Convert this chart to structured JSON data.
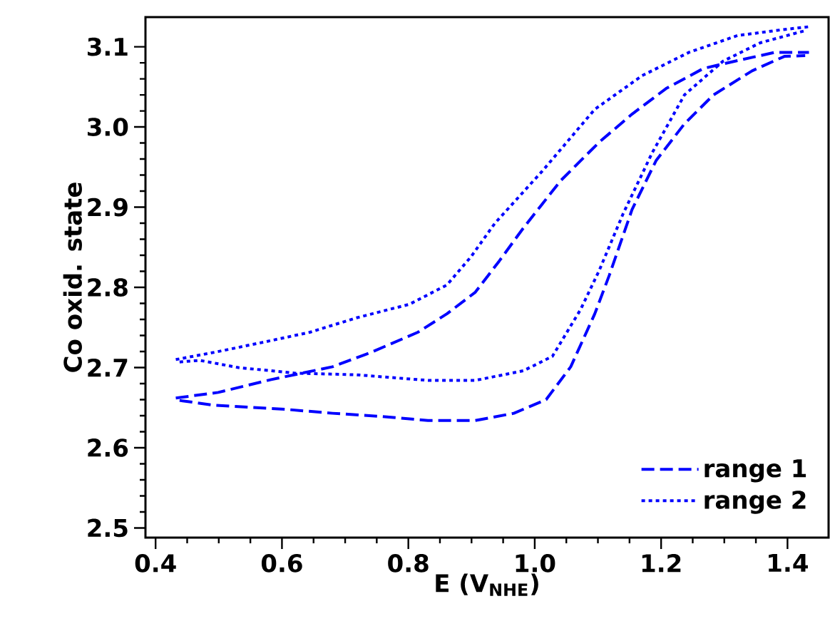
{
  "chart_data": {
    "type": "line",
    "xlabel": "E (V$_{NHE}$)",
    "ylabel": "Co oxid. state",
    "xlim": [
      0.384,
      1.465
    ],
    "ylim": [
      2.488,
      3.137
    ],
    "xticks": [
      0.4,
      0.6,
      0.8,
      {
        "value": 1.0,
        "label": "1.0"
      },
      1.2,
      1.4
    ],
    "yticks": [
      2.5,
      2.6,
      2.7,
      2.8,
      2.9,
      {
        "value": 3.0,
        "label": "3.0"
      },
      3.1
    ],
    "grid": false,
    "legend": "bottom right",
    "marker": "none",
    "series": [
      {
        "name": "range 1",
        "color": "#0000ff",
        "line_style": "dashed",
        "x": [
          0.432,
          0.499,
          0.583,
          0.68,
          0.741,
          0.815,
          0.861,
          0.906,
          0.944,
          0.982,
          1.041,
          1.102,
          1.154,
          1.208,
          1.267,
          1.328,
          1.38,
          1.434
        ],
        "values": [
          2.662,
          2.669,
          2.685,
          2.701,
          2.719,
          2.744,
          2.767,
          2.794,
          2.833,
          2.874,
          2.933,
          2.981,
          3.016,
          3.048,
          3.073,
          3.084,
          3.093,
          3.093
        ]
      },
      {
        "color": "#0000ff",
        "line_style": "dashed",
        "x": [
          0.438,
          0.493,
          0.605,
          0.68,
          0.757,
          0.831,
          0.906,
          0.967,
          1.018,
          1.057,
          1.095,
          1.118,
          1.154,
          1.192,
          1.237,
          1.283,
          1.344,
          1.395,
          1.428
        ],
        "values": [
          2.659,
          2.653,
          2.648,
          2.643,
          2.639,
          2.634,
          2.634,
          2.643,
          2.66,
          2.701,
          2.767,
          2.815,
          2.897,
          2.958,
          3.004,
          3.04,
          3.07,
          3.088,
          3.089
        ]
      },
      {
        "name": "range 2",
        "color": "#0000ff",
        "line_style": "dotted",
        "x": [
          0.432,
          0.493,
          0.567,
          0.644,
          0.718,
          0.802,
          0.861,
          0.899,
          0.937,
          1.012,
          1.095,
          1.17,
          1.244,
          1.321,
          1.389,
          1.434
        ],
        "values": [
          2.71,
          2.719,
          2.731,
          2.744,
          2.762,
          2.779,
          2.803,
          2.838,
          2.88,
          2.945,
          3.022,
          3.064,
          3.093,
          3.114,
          3.121,
          3.125
        ]
      },
      {
        "color": "#0000ff",
        "line_style": "dotted",
        "x": [
          0.438,
          0.47,
          0.531,
          0.621,
          0.718,
          0.831,
          0.906,
          0.982,
          1.028,
          1.073,
          1.102,
          1.14,
          1.186,
          1.237,
          1.298,
          1.357,
          1.418,
          1.428
        ],
        "values": [
          2.707,
          2.709,
          2.7,
          2.693,
          2.691,
          2.684,
          2.684,
          2.696,
          2.714,
          2.773,
          2.821,
          2.892,
          2.968,
          3.04,
          3.082,
          3.105,
          3.118,
          3.12
        ]
      }
    ]
  }
}
